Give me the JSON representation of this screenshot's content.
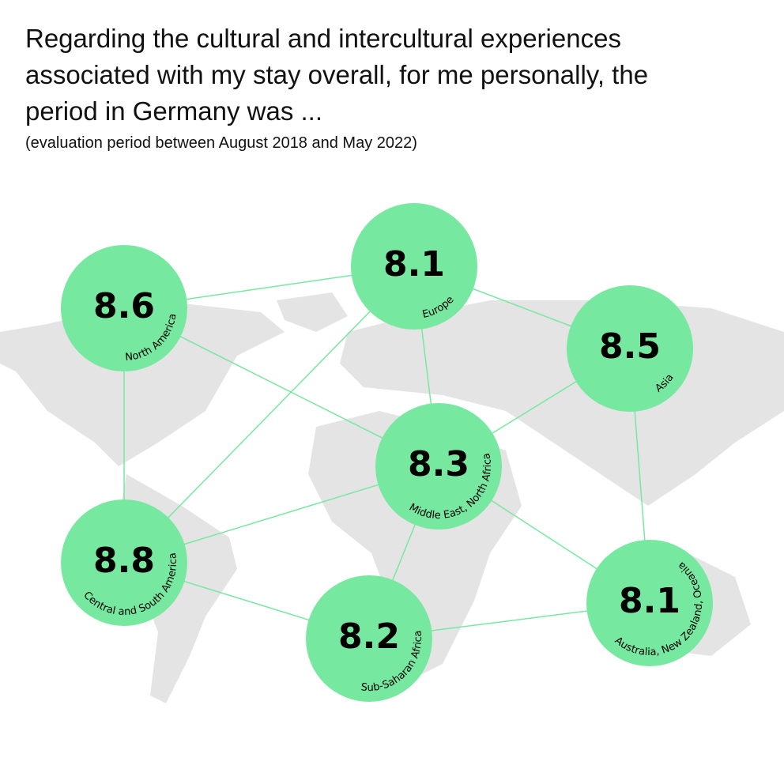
{
  "chart_data": {
    "type": "network",
    "title": "Regarding the cultural and intercultural experiences associated with my stay overall, for me personally, the period in Germany was ...",
    "subtitle": "(evaluation period between August 2018 and May 2022)",
    "categories": [
      "North America",
      "Europe",
      "Asia",
      "Middle East, North Africa",
      "Central and South America",
      "Sub-Saharan Africa",
      "Australia, New Zealand, Oceania"
    ],
    "values": [
      8.6,
      8.1,
      8.5,
      8.3,
      8.8,
      8.2,
      8.1
    ],
    "color": "#77e89f"
  }
}
